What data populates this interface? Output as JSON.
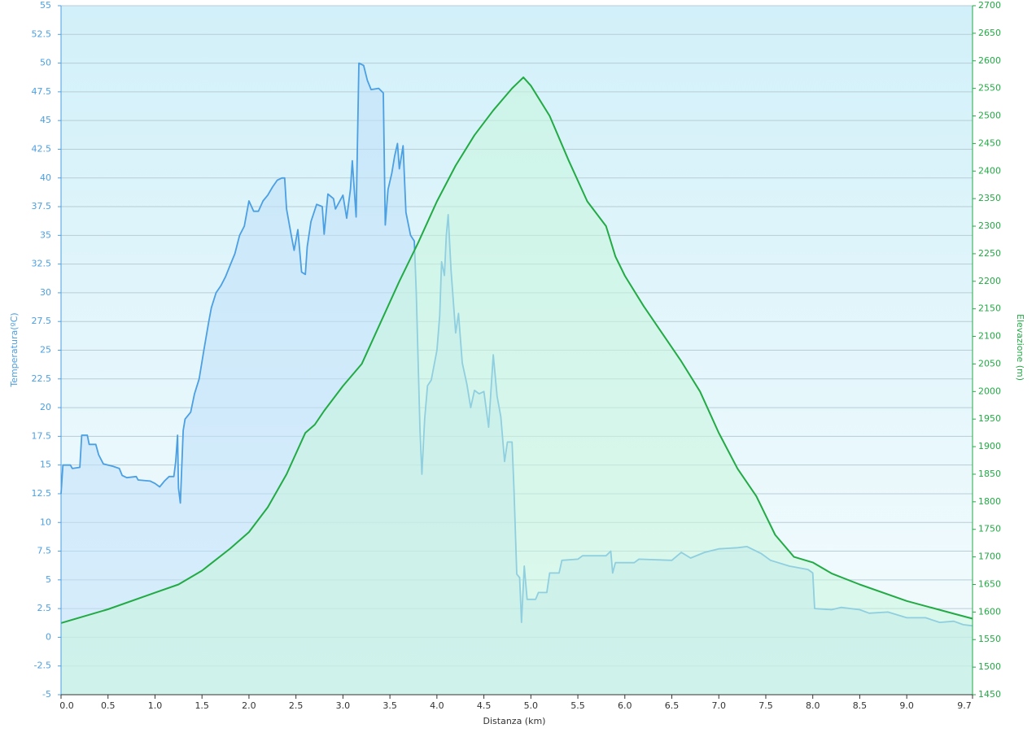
{
  "chart_data": {
    "type": "line",
    "xlabel": "Distanza  (km)",
    "ylabel": "Temperatura(ºC)",
    "y2label": "Elevazione (m)",
    "xlim": [
      0,
      9.7
    ],
    "xticks": [
      {
        "value": 0,
        "label": "0.0"
      },
      0.5,
      {
        "value": 1,
        "label": "1.0"
      },
      1.5,
      {
        "value": 2,
        "label": "2.0"
      },
      2.5,
      {
        "value": 3,
        "label": "3.0"
      },
      3.5,
      {
        "value": 4,
        "label": "4.0"
      },
      4.5,
      {
        "value": 5,
        "label": "5.0"
      },
      5.5,
      {
        "value": 6,
        "label": "6.0"
      },
      6.5,
      {
        "value": 7,
        "label": "7.0"
      },
      7.5,
      {
        "value": 8,
        "label": "8.0"
      },
      8.5,
      {
        "value": 9,
        "label": "9.0"
      },
      9.7
    ],
    "ylim": [
      -5,
      55
    ],
    "yticks": [
      -5,
      -2.5,
      0,
      2.5,
      5,
      7.5,
      10,
      12.5,
      15,
      17.5,
      20,
      22.5,
      25,
      27.5,
      30,
      32.5,
      35,
      37.5,
      40,
      42.5,
      45,
      47.5,
      50,
      52.5,
      55
    ],
    "y2lim": [
      1450,
      2700
    ],
    "y2ticks": [
      1450,
      1500,
      1550,
      1600,
      1650,
      1700,
      1750,
      1800,
      1850,
      1900,
      1950,
      2000,
      2050,
      2100,
      2150,
      2200,
      2250,
      2300,
      2350,
      2400,
      2450,
      2500,
      2550,
      2600,
      2650,
      2700
    ],
    "grid": true,
    "series": [
      {
        "color": "#4b9fe3",
        "fill": "#bfe0fa",
        "axis": "y",
        "x": [
          0,
          0.02,
          0.1,
          0.12,
          0.2,
          0.22,
          0.28,
          0.3,
          0.37,
          0.4,
          0.45,
          0.55,
          0.62,
          0.65,
          0.7,
          0.8,
          0.82,
          0.95,
          1.0,
          1.05,
          1.1,
          1.15,
          1.2,
          1.22,
          1.24,
          1.25,
          1.27,
          1.3,
          1.32,
          1.38,
          1.42,
          1.47,
          1.52,
          1.57,
          1.6,
          1.65,
          1.7,
          1.75,
          1.8,
          1.85,
          1.9,
          1.95,
          2.0,
          2.05,
          2.1,
          2.15,
          2.2,
          2.25,
          2.3,
          2.35,
          2.38,
          2.4,
          2.45,
          2.48,
          2.52,
          2.56,
          2.6,
          2.62,
          2.66,
          2.72,
          2.78,
          2.8,
          2.84,
          2.9,
          2.92,
          2.96,
          3.0,
          3.04,
          3.08,
          3.1,
          3.14,
          3.17,
          3.22,
          3.26,
          3.3,
          3.38,
          3.43,
          3.45,
          3.48,
          3.52,
          3.55,
          3.58,
          3.6,
          3.64,
          3.67,
          3.72,
          3.76,
          3.78,
          3.82,
          3.84,
          3.87,
          3.9,
          3.94,
          4.0,
          4.03,
          4.05,
          4.08,
          4.1,
          4.12,
          4.15,
          4.2,
          4.23,
          4.27,
          4.32,
          4.36,
          4.4,
          4.45,
          4.5,
          4.55,
          4.6,
          4.64,
          4.68,
          4.72,
          4.75,
          4.8,
          4.82,
          4.85,
          4.88,
          4.9,
          4.93,
          4.96,
          5.05,
          5.08,
          5.17,
          5.2,
          5.3,
          5.33,
          5.5,
          5.55,
          5.8,
          5.85,
          5.87,
          5.9,
          6.1,
          6.15,
          6.5,
          6.6,
          6.7,
          6.85,
          7.0,
          7.2,
          7.3,
          7.45,
          7.55,
          7.75,
          7.95,
          8.0,
          8.02,
          8.2,
          8.3,
          8.5,
          8.6,
          8.8,
          9.0,
          9.2,
          9.35,
          9.5,
          9.6,
          9.7
        ],
        "values": [
          12.5,
          15,
          15,
          14.7,
          14.8,
          17.6,
          17.6,
          16.8,
          16.8,
          15.9,
          15.1,
          14.9,
          14.7,
          14.1,
          13.9,
          14,
          13.7,
          13.6,
          13.4,
          13.1,
          13.6,
          14,
          14,
          15.3,
          17.6,
          13,
          11.7,
          18,
          19,
          19.6,
          21.2,
          22.5,
          25,
          27.4,
          28.7,
          30,
          30.6,
          31.4,
          32.4,
          33.4,
          35,
          35.8,
          38,
          37.1,
          37.1,
          38,
          38.5,
          39.2,
          39.8,
          40,
          40,
          37.3,
          35,
          33.7,
          35.5,
          31.8,
          31.6,
          34,
          36.2,
          37.7,
          37.5,
          35.1,
          38.6,
          38.2,
          37.3,
          37.9,
          38.5,
          36.5,
          39,
          41.5,
          36.6,
          50,
          49.8,
          48.5,
          47.7,
          47.8,
          47.4,
          35.9,
          39,
          40.4,
          41.9,
          43,
          40.8,
          42.8,
          37,
          35,
          34.5,
          30,
          18,
          14.2,
          19,
          21.9,
          22.4,
          25,
          28,
          32.7,
          31.5,
          35,
          36.8,
          32,
          26.5,
          28.2,
          23.9,
          22,
          20,
          21.5,
          21.2,
          21.4,
          18.3,
          24.6,
          21,
          19.2,
          15.3,
          17,
          17,
          13,
          5.5,
          5.2,
          1.3,
          6.2,
          3.3,
          3.3,
          3.9,
          3.9,
          5.6,
          5.6,
          6.7,
          6.8,
          7.1,
          7.1,
          7.5,
          5.6,
          6.5,
          6.5,
          6.8,
          6.7,
          7.4,
          6.9,
          7.4,
          7.7,
          7.8,
          7.9,
          7.3,
          6.7,
          6.2,
          5.9,
          5.6,
          2.5,
          2.4,
          2.6,
          2.4,
          2.1,
          2.2,
          1.7,
          1.7,
          1.3,
          1.4,
          1.1,
          1.0
        ]
      },
      {
        "color": "#22aa44",
        "fill": "#c8f5dc",
        "axis": "y2",
        "x": [
          0,
          0.5,
          1.0,
          1.25,
          1.5,
          1.8,
          2.0,
          2.2,
          2.4,
          2.6,
          2.7,
          2.8,
          3.0,
          3.2,
          3.4,
          3.6,
          3.8,
          4.0,
          4.2,
          4.4,
          4.6,
          4.8,
          4.92,
          5.0,
          5.2,
          5.4,
          5.6,
          5.8,
          5.9,
          6.0,
          6.2,
          6.4,
          6.6,
          6.8,
          7.0,
          7.2,
          7.4,
          7.6,
          7.8,
          8.0,
          8.2,
          8.5,
          9.0,
          9.5,
          9.7
        ],
        "values": [
          1580,
          1605,
          1635,
          1650,
          1675,
          1715,
          1745,
          1790,
          1850,
          1925,
          1940,
          1965,
          2010,
          2050,
          2125,
          2200,
          2270,
          2345,
          2410,
          2465,
          2510,
          2550,
          2570,
          2555,
          2500,
          2420,
          2345,
          2300,
          2245,
          2210,
          2155,
          2105,
          2055,
          2000,
          1925,
          1860,
          1810,
          1740,
          1700,
          1690,
          1670,
          1650,
          1620,
          1597,
          1588
        ]
      }
    ]
  }
}
